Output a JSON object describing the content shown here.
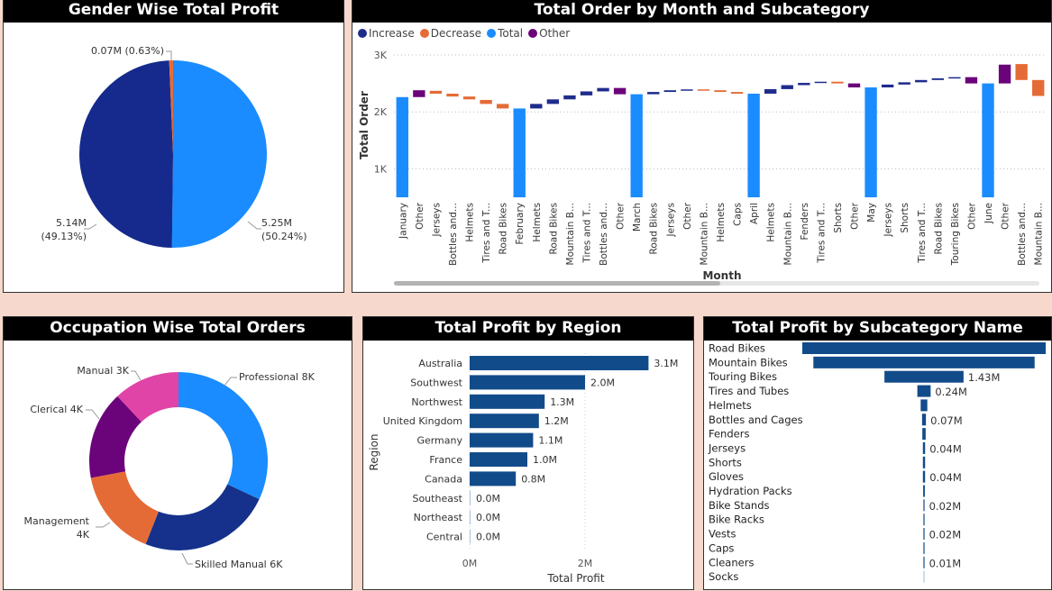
{
  "colors": {
    "increase": "#1e2d8c",
    "decrease": "#e56b36",
    "total": "#1a8cff",
    "other": "#6b037a",
    "navy": "#15318b",
    "male": "#1a8cff",
    "female": "#152a8c",
    "hbar": "#124b8a"
  },
  "gender_panel": {
    "title": "Gender Wise Total Profit"
  },
  "waterfall_panel": {
    "title": "Total Order by Month and Subcategory",
    "legend": [
      {
        "label": "Increase",
        "color": "#1e2d8c"
      },
      {
        "label": "Decrease",
        "color": "#e56b36"
      },
      {
        "label": "Total",
        "color": "#1a8cff"
      },
      {
        "label": "Other",
        "color": "#6b037a"
      }
    ]
  },
  "occupation_panel": {
    "title": "Occupation Wise Total Orders"
  },
  "region_panel": {
    "title": "Total Profit by Region"
  },
  "subcategory_panel": {
    "title": "Total Profit by Subcategory Name"
  },
  "chart_data": [
    {
      "type": "pie",
      "title": "Gender Wise Total Profit",
      "slices": [
        {
          "value": 5.25,
          "label_value": "5.25M",
          "label_pct": "(50.24%)",
          "color": "#1a8cff"
        },
        {
          "value": 5.14,
          "label_value": "5.14M",
          "label_pct": "(49.13%)",
          "color": "#152a8c"
        },
        {
          "value": 0.07,
          "label_value": "0.07M",
          "label_pct": "(0.63%)",
          "color": "#e56b36"
        }
      ]
    },
    {
      "type": "waterfall",
      "title": "Total Order by Month and Subcategory",
      "xlabel": "Month",
      "ylabel": "Total Order",
      "ylim": [
        500,
        3000
      ],
      "yticks": [
        {
          "v": 1000,
          "label": "1K"
        },
        {
          "v": 2000,
          "label": "2K"
        },
        {
          "v": 3000,
          "label": "3K"
        }
      ],
      "bars": [
        {
          "label": "January",
          "kind": "total",
          "low": 500,
          "high": 2260
        },
        {
          "label": "Other",
          "kind": "other",
          "low": 2260,
          "high": 2380
        },
        {
          "label": "Jerseys",
          "kind": "decrease",
          "low": 2320,
          "high": 2370
        },
        {
          "label": "Bottles and...",
          "kind": "decrease",
          "low": 2270,
          "high": 2320
        },
        {
          "label": "Helmets",
          "kind": "decrease",
          "low": 2220,
          "high": 2270
        },
        {
          "label": "Tires and T...",
          "kind": "decrease",
          "low": 2140,
          "high": 2210
        },
        {
          "label": "Road Bikes",
          "kind": "decrease",
          "low": 2060,
          "high": 2140
        },
        {
          "label": "February",
          "kind": "total",
          "low": 500,
          "high": 2060
        },
        {
          "label": "Helmets",
          "kind": "increase",
          "low": 2060,
          "high": 2140
        },
        {
          "label": "Road Bikes",
          "kind": "increase",
          "low": 2140,
          "high": 2220
        },
        {
          "label": "Mountain B...",
          "kind": "increase",
          "low": 2220,
          "high": 2290
        },
        {
          "label": "Tires and T...",
          "kind": "increase",
          "low": 2290,
          "high": 2360
        },
        {
          "label": "Bottles and...",
          "kind": "increase",
          "low": 2360,
          "high": 2420
        },
        {
          "label": "Other",
          "kind": "other",
          "low": 2310,
          "high": 2420
        },
        {
          "label": "March",
          "kind": "total",
          "low": 500,
          "high": 2310
        },
        {
          "label": "Road Bikes",
          "kind": "increase",
          "low": 2310,
          "high": 2350
        },
        {
          "label": "Jerseys",
          "kind": "increase",
          "low": 2350,
          "high": 2380
        },
        {
          "label": "Other",
          "kind": "increase",
          "low": 2380,
          "high": 2395
        },
        {
          "label": "Mountain B...",
          "kind": "decrease",
          "low": 2380,
          "high": 2395
        },
        {
          "label": "Helmets",
          "kind": "decrease",
          "low": 2350,
          "high": 2380
        },
        {
          "label": "Caps",
          "kind": "decrease",
          "low": 2320,
          "high": 2350
        },
        {
          "label": "April",
          "kind": "total",
          "low": 500,
          "high": 2320
        },
        {
          "label": "Helmets",
          "kind": "increase",
          "low": 2320,
          "high": 2400
        },
        {
          "label": "Mountain B...",
          "kind": "increase",
          "low": 2400,
          "high": 2470
        },
        {
          "label": "Fenders",
          "kind": "increase",
          "low": 2470,
          "high": 2510
        },
        {
          "label": "Tires and T...",
          "kind": "increase",
          "low": 2510,
          "high": 2530
        },
        {
          "label": "Shorts",
          "kind": "decrease",
          "low": 2500,
          "high": 2530
        },
        {
          "label": "Other",
          "kind": "other",
          "low": 2430,
          "high": 2500
        },
        {
          "label": "May",
          "kind": "total",
          "low": 500,
          "high": 2430
        },
        {
          "label": "Jerseys",
          "kind": "increase",
          "low": 2430,
          "high": 2480
        },
        {
          "label": "Shorts",
          "kind": "increase",
          "low": 2480,
          "high": 2520
        },
        {
          "label": "Tires and T...",
          "kind": "increase",
          "low": 2520,
          "high": 2560
        },
        {
          "label": "Road Bikes",
          "kind": "increase",
          "low": 2560,
          "high": 2590
        },
        {
          "label": "Touring Bikes",
          "kind": "increase",
          "low": 2590,
          "high": 2610
        },
        {
          "label": "Other",
          "kind": "other",
          "low": 2500,
          "high": 2610
        },
        {
          "label": "June",
          "kind": "total",
          "low": 500,
          "high": 2500
        },
        {
          "label": "Other",
          "kind": "other",
          "low": 2500,
          "high": 2830
        },
        {
          "label": "Bottles and...",
          "kind": "decrease",
          "low": 2560,
          "high": 2840
        },
        {
          "label": "Mountain B...",
          "kind": "decrease",
          "low": 2280,
          "high": 2560
        }
      ]
    },
    {
      "type": "donut",
      "title": "Occupation Wise Total Orders",
      "slices": [
        {
          "label": "Professional 8K",
          "value": 8,
          "color": "#1a8cff"
        },
        {
          "label": "Skilled Manual 6K",
          "value": 6,
          "color": "#15318b"
        },
        {
          "label_lines": [
            "Management",
            "4K"
          ],
          "label": "Management 4K",
          "value": 4,
          "color": "#e56b36"
        },
        {
          "label": "Clerical 4K",
          "value": 4,
          "color": "#6b037a"
        },
        {
          "label": "Manual 3K",
          "value": 3,
          "color": "#e044a7"
        }
      ]
    },
    {
      "type": "bar",
      "orientation": "horizontal",
      "title": "Total Profit by Region",
      "xlabel": "Total Profit",
      "ylabel": "Region",
      "xlim": [
        0,
        3.6
      ],
      "xticks": [
        {
          "v": 0,
          "label": "0M"
        },
        {
          "v": 2,
          "label": "2M"
        }
      ],
      "categories": [
        "Australia",
        "Southwest",
        "Northwest",
        "United Kingdom",
        "Germany",
        "France",
        "Canada",
        "Southeast",
        "Northeast",
        "Central"
      ],
      "values": [
        3.1,
        2.0,
        1.3,
        1.2,
        1.1,
        1.0,
        0.8,
        0.0,
        0.0,
        0.0
      ],
      "data_labels": [
        "3.1M",
        "2.0M",
        "1.3M",
        "1.2M",
        "1.1M",
        "1.0M",
        "0.8M",
        "0.0M",
        "0.0M",
        "0.0M"
      ]
    },
    {
      "type": "bar",
      "orientation": "horizontal-centered",
      "title": "Total Profit by Subcategory Name",
      "categories": [
        "Road Bikes",
        "Mountain Bikes",
        "Touring Bikes",
        "Tires and Tubes",
        "Helmets",
        "Bottles and Cages",
        "Fenders",
        "Jerseys",
        "Shorts",
        "Gloves",
        "Hydration Packs",
        "Bike Stands",
        "Bike Racks",
        "Vests",
        "Caps",
        "Cleaners",
        "Socks"
      ],
      "values": [
        4.4,
        4.0,
        1.43,
        0.24,
        0.12,
        0.07,
        0.06,
        0.04,
        0.04,
        0.04,
        0.03,
        0.02,
        0.02,
        0.02,
        0.01,
        0.01,
        0.005
      ],
      "data_labels": [
        "",
        "",
        "1.43M",
        "0.24M",
        "",
        "0.07M",
        "",
        "0.04M",
        "",
        "0.04M",
        "",
        "0.02M",
        "",
        "0.02M",
        "",
        "0.01M",
        ""
      ]
    }
  ]
}
